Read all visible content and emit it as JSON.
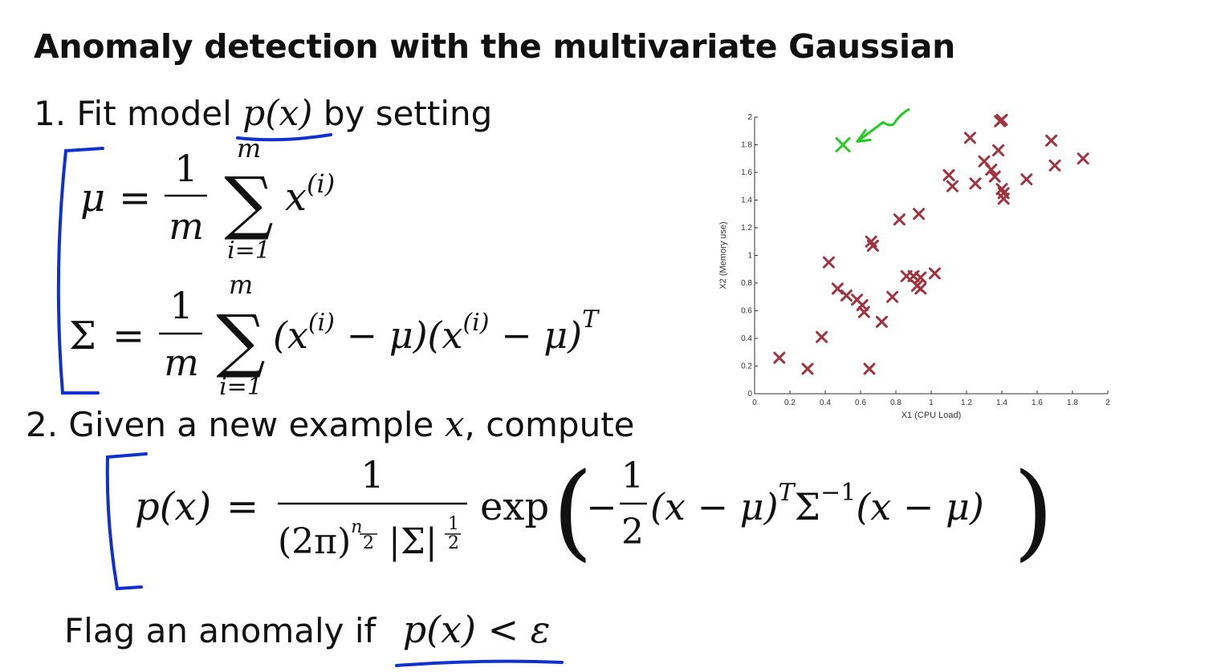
{
  "title": "Anomaly detection with the multivariate Gaussian",
  "step1": {
    "prefix": "1. Fit model",
    "model": "p(x)",
    "suffix": "by setting"
  },
  "mu": {
    "lhs": "μ",
    "eq": "=",
    "num": "1",
    "den": "m",
    "sum_top": "m",
    "sum_bottom": "i=1",
    "sigma": "∑",
    "term": "x",
    "sup": "(i)"
  },
  "cov": {
    "lhs": "Σ",
    "eq": "=",
    "num": "1",
    "den": "m",
    "sum_top": "m",
    "sum_bottom": "i=1",
    "sigma": "∑",
    "term_a": "(x",
    "sup_a": "(i)",
    "mid": " − μ)(x",
    "sup_b": "(i)",
    "end": " − μ)",
    "sup_t": "T"
  },
  "step2": {
    "prefix": "2. Given a new example",
    "var": "x",
    "suffix": ", compute"
  },
  "density": {
    "lhs": "p(x)",
    "eq": "=",
    "num": "1",
    "den_a": "(2π)",
    "den_sup_num": "n",
    "den_sup_den": "2",
    "den_b": "|Σ|",
    "den_sup2_num": "1",
    "den_sup2_den": "2",
    "exp": "exp",
    "lparen": "(",
    "rparen": ")",
    "minus": "−",
    "half_num": "1",
    "half_den": "2",
    "q1": "(x − μ)",
    "q1_sup": "T",
    "q2": "Σ",
    "q2_sup": "−1",
    "q3": "(x − μ)"
  },
  "flag": {
    "prefix": "Flag an anomaly if",
    "condition": "p(x) < ε"
  },
  "colors": {
    "marker": "#a1333f",
    "annotation_blue": "#1030d0",
    "annotation_green": "#22cc22",
    "axis": "#333333"
  },
  "chart_data": {
    "type": "scatter",
    "xlabel": "X1 (CPU Load)",
    "ylabel": "X2 (Memory use)",
    "xlim": [
      0,
      2
    ],
    "ylim": [
      0,
      2
    ],
    "xticks": [
      "0",
      "0.2",
      "0.4",
      "0.6",
      "0.8",
      "1",
      "1.2",
      "1.4",
      "1.6",
      "1.8",
      "2"
    ],
    "yticks": [
      "0",
      "0.2",
      "0.4",
      "0.6",
      "0.8",
      "1",
      "1.2",
      "1.4",
      "1.6",
      "1.8",
      "2"
    ],
    "marker": "x",
    "points": [
      [
        0.14,
        0.26
      ],
      [
        0.3,
        0.18
      ],
      [
        0.38,
        0.41
      ],
      [
        0.42,
        0.95
      ],
      [
        0.47,
        0.76
      ],
      [
        0.52,
        0.71
      ],
      [
        0.58,
        0.68
      ],
      [
        0.61,
        0.64
      ],
      [
        0.62,
        0.59
      ],
      [
        0.65,
        0.18
      ],
      [
        0.66,
        1.1
      ],
      [
        0.67,
        1.07
      ],
      [
        0.72,
        0.52
      ],
      [
        0.78,
        0.7
      ],
      [
        0.82,
        1.26
      ],
      [
        0.86,
        0.85
      ],
      [
        0.9,
        0.85
      ],
      [
        0.92,
        0.78
      ],
      [
        0.93,
        1.3
      ],
      [
        0.94,
        0.84
      ],
      [
        0.94,
        0.76
      ],
      [
        1.02,
        0.87
      ],
      [
        1.1,
        1.58
      ],
      [
        1.12,
        1.5
      ],
      [
        1.22,
        1.85
      ],
      [
        1.25,
        1.52
      ],
      [
        1.3,
        1.68
      ],
      [
        1.34,
        1.62
      ],
      [
        1.36,
        1.57
      ],
      [
        1.38,
        1.76
      ],
      [
        1.39,
        1.97
      ],
      [
        1.4,
        1.98
      ],
      [
        1.4,
        1.48
      ],
      [
        1.41,
        1.45
      ],
      [
        1.41,
        1.41
      ],
      [
        1.54,
        1.55
      ],
      [
        1.68,
        1.83
      ],
      [
        1.7,
        1.65
      ],
      [
        1.86,
        1.7
      ]
    ],
    "annotations": {
      "green_point": [
        0.5,
        1.8
      ]
    }
  }
}
